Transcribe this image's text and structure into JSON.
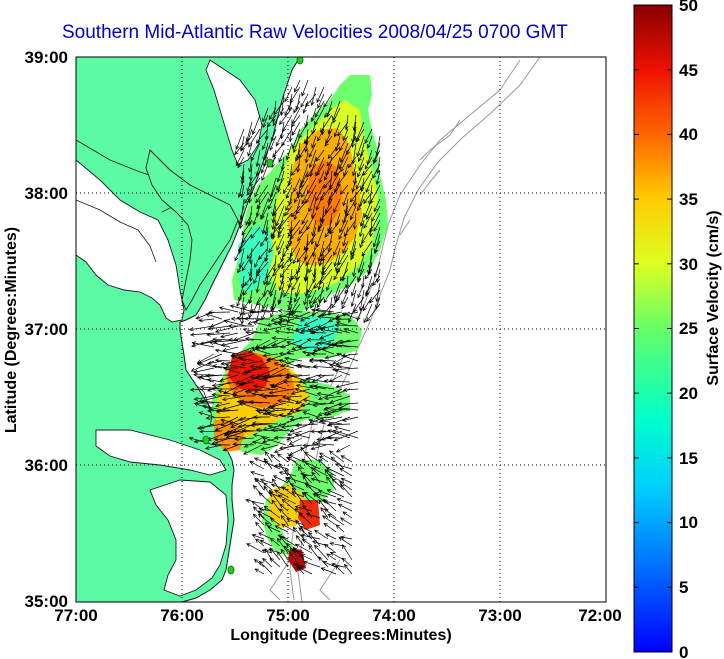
{
  "title": "Southern Mid-Atlantic Raw Velocities 2008/04/25 0700 GMT",
  "x_axis": {
    "label": "Longitude (Degrees:Minutes)",
    "ticks": [
      "77:00",
      "76:00",
      "75:00",
      "74:00",
      "73:00",
      "72:00"
    ]
  },
  "y_axis": {
    "label": "Latitude (Degrees:Minutes)",
    "ticks": [
      "39:00",
      "38:00",
      "37:00",
      "36:00",
      "35:00"
    ]
  },
  "colorbar": {
    "label": "Surface Velocity (cm/s)",
    "ticks": [
      "50",
      "45",
      "40",
      "35",
      "30",
      "25",
      "20",
      "15",
      "10",
      "5",
      "0"
    ],
    "range": [
      0,
      50
    ],
    "colormap": "jet"
  },
  "map_style": {
    "land_color": "#5dfaa5",
    "coastline_color": "#1a1a1a",
    "bathymetry_color": "#999999",
    "grid": "dotted",
    "station_marker_color": "#22cc22"
  },
  "extent": {
    "lon": [
      -77,
      -72
    ],
    "lat": [
      35,
      39
    ]
  }
}
